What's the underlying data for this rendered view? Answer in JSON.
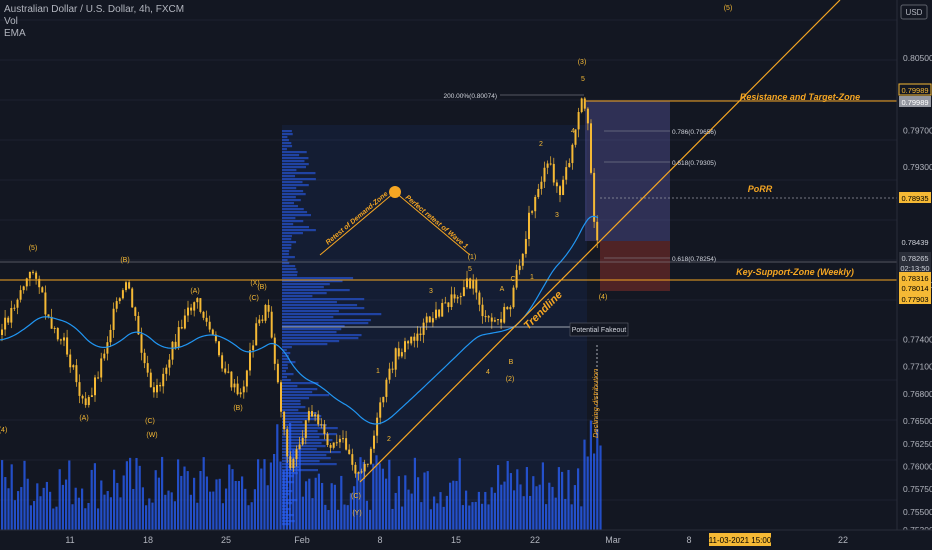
{
  "legend": {
    "symbol": "Australian Dollar / U.S. Dollar, 4h, FXCM",
    "vol": "Vol",
    "ema": "EMA"
  },
  "currency": "USD",
  "colors": {
    "background": "#131722",
    "candle": "#f5b935",
    "volume": "#2962ff",
    "ema": "#2196f3",
    "annotation": "#f5a623",
    "label_text": "#f5b935",
    "axis_text": "#b2b5be"
  },
  "chart_data": {
    "type": "candlestick",
    "ylim": [
      0.753,
      0.809
    ],
    "price_ticks": [
      "0.80500",
      "0.79700",
      "0.79300",
      "0.78000",
      "0.77400",
      "0.77100",
      "0.76800",
      "0.76500",
      "0.76250",
      "0.76000",
      "0.75750",
      "0.75500",
      "0.75300"
    ],
    "x_ticks": [
      "11",
      "18",
      "25",
      "Feb",
      "8",
      "15",
      "22",
      "Mar",
      "8",
      "15",
      "22"
    ],
    "date_badge": "11-03-2021   15:00",
    "price_badges": [
      {
        "text": "0.79989",
        "style": "outline"
      },
      {
        "text": "0.79989",
        "style": "grey"
      },
      {
        "text": "0.78935",
        "style": "filled"
      },
      {
        "text": "0.78439",
        "style": "plain"
      },
      {
        "text": "0.78265",
        "style": "light"
      },
      {
        "text": "02:13:50",
        "style": "light"
      },
      {
        "text": "0.78316",
        "style": "filled"
      },
      {
        "text": "0.78014",
        "style": "filled"
      },
      {
        "text": "0.77903",
        "style": "filled"
      }
    ],
    "horizontal_levels": [
      {
        "label": "Resistance and Target-Zone",
        "price": 0.7999
      },
      {
        "label": "PoRR",
        "price": 0.7893
      },
      {
        "label": "Key-Support-Zone (Weekly)",
        "price": 0.7801
      }
    ],
    "fib_labels": [
      "200.00%(0.80074)",
      "0.786(0.79656)",
      "0.618(0.79305)",
      "0.618(0.78254)"
    ],
    "drawing_labels": {
      "trendline": "Trendline",
      "potential_fakeout": "Potential Fakeout",
      "declining_distribution": "Declining distribution",
      "retest_demand": "Retest of Demand-Zone",
      "retest_wave1": "Perfect retest of Wave 1"
    },
    "wave_labels": [
      "(5)",
      "(B)",
      "(A)",
      "(C)",
      "(B)",
      "(W)",
      "(X)",
      "(C)",
      "(B)",
      "(A)",
      "(4)",
      "(C)",
      "(Y)",
      "(1)",
      "(2)",
      "(3)",
      "(4)",
      "(5)",
      "1",
      "2",
      "3",
      "4",
      "5",
      "A",
      "B",
      "C",
      "1",
      "2",
      "3",
      "4",
      "5"
    ]
  }
}
